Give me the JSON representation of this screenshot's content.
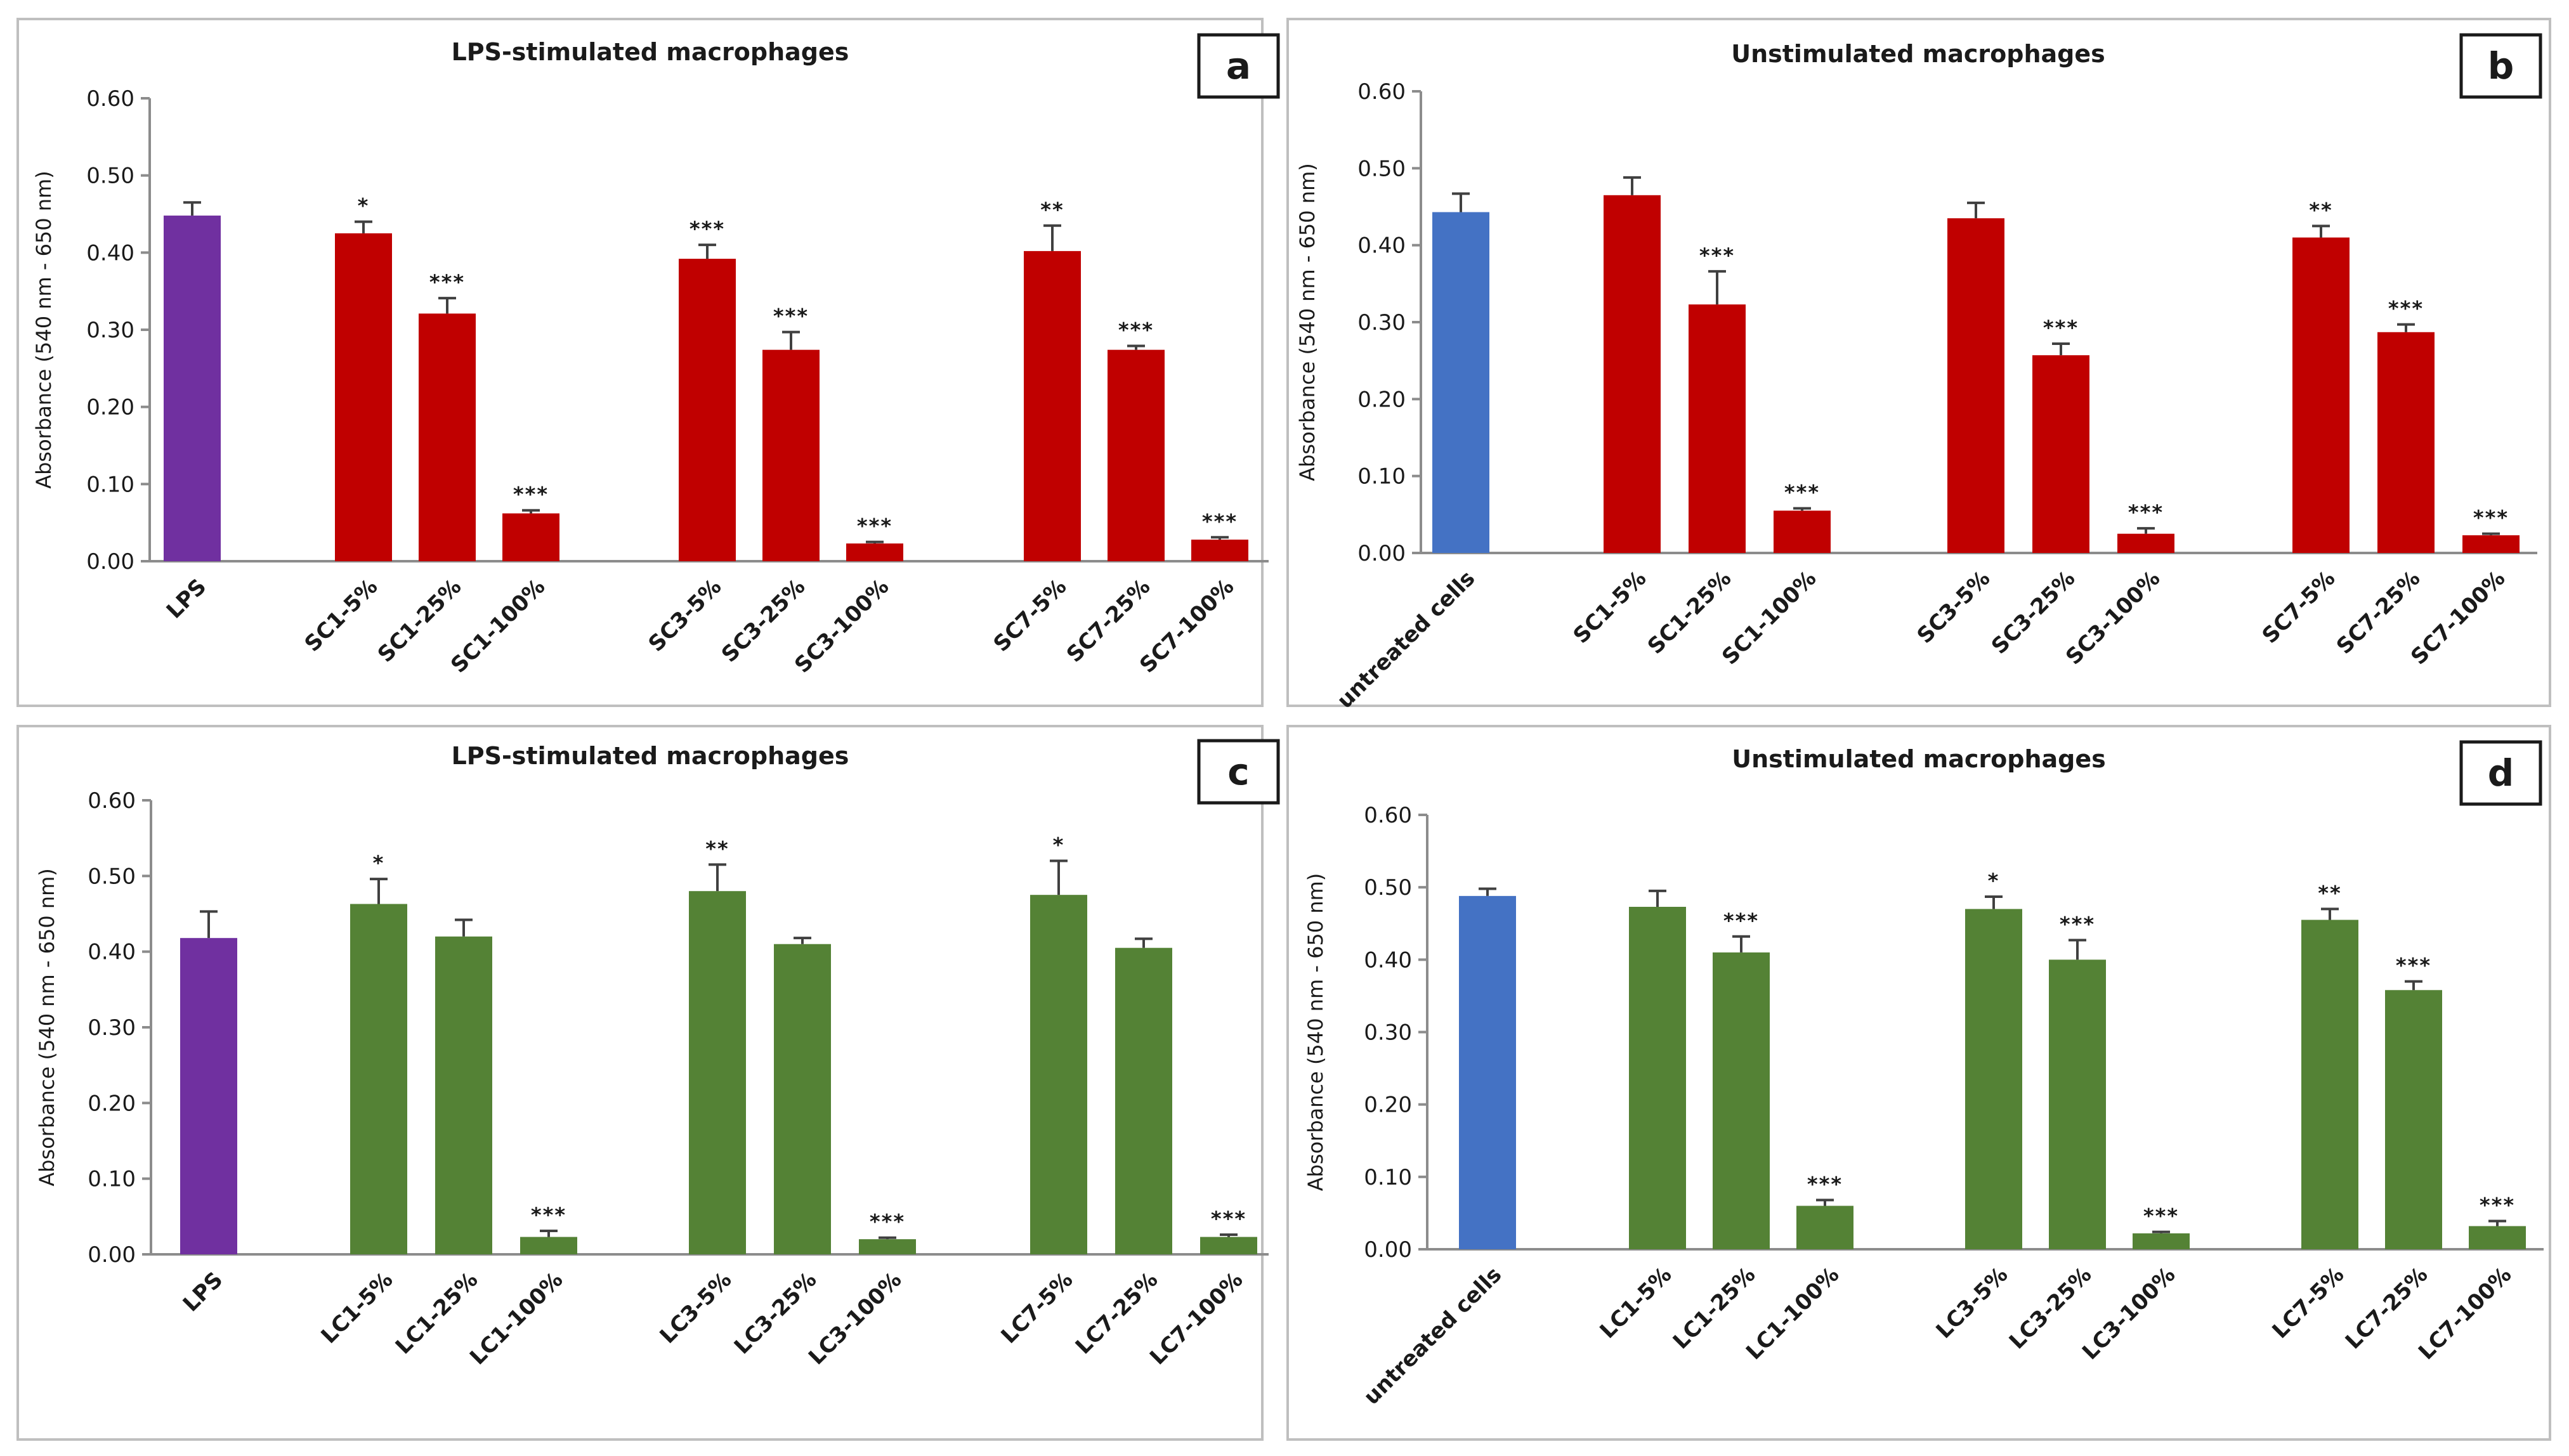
{
  "colors": {
    "purple": "#7030A0",
    "red": "#C00000",
    "green": "#548235",
    "blue": "#4472C4"
  },
  "chart_data": [
    {
      "id": "a",
      "type": "bar",
      "panel_label": "a",
      "title": "LPS-stimulated macrophages",
      "ylabel": "Absorbance (540 nm - 650 nm)",
      "ylim": [
        0,
        0.6
      ],
      "yticks": [
        "0.00",
        "0.10",
        "0.20",
        "0.30",
        "0.40",
        "0.50",
        "0.60"
      ],
      "bars": [
        {
          "label": "LPS",
          "value": 0.448,
          "error": 0.017,
          "sig": "",
          "color": "#7030A0"
        },
        {
          "label": "SC1-5%",
          "value": 0.425,
          "error": 0.015,
          "sig": "*",
          "color": "#C00000"
        },
        {
          "label": "SC1-25%",
          "value": 0.321,
          "error": 0.02,
          "sig": "***",
          "color": "#C00000"
        },
        {
          "label": "SC1-100%",
          "value": 0.062,
          "error": 0.004,
          "sig": "***",
          "color": "#C00000"
        },
        {
          "label": "SC3-5%",
          "value": 0.392,
          "error": 0.018,
          "sig": "***",
          "color": "#C00000"
        },
        {
          "label": "SC3-25%",
          "value": 0.274,
          "error": 0.023,
          "sig": "***",
          "color": "#C00000"
        },
        {
          "label": "SC3-100%",
          "value": 0.023,
          "error": 0.002,
          "sig": "***",
          "color": "#C00000"
        },
        {
          "label": "SC7-5%",
          "value": 0.402,
          "error": 0.033,
          "sig": "**",
          "color": "#C00000"
        },
        {
          "label": "SC7-25%",
          "value": 0.274,
          "error": 0.005,
          "sig": "***",
          "color": "#C00000"
        },
        {
          "label": "SC7-100%",
          "value": 0.028,
          "error": 0.003,
          "sig": "***",
          "color": "#C00000"
        }
      ]
    },
    {
      "id": "b",
      "type": "bar",
      "panel_label": "b",
      "title": "Unstimulated macrophages",
      "ylabel": "Absorbance (540 nm - 650 nm)",
      "ylim": [
        0,
        0.6
      ],
      "yticks": [
        "0.00",
        "0.10",
        "0.20",
        "0.30",
        "0.40",
        "0.50",
        "0.60"
      ],
      "bars": [
        {
          "label": "untreated cells",
          "value": 0.443,
          "error": 0.024,
          "sig": "",
          "color": "#4472C4"
        },
        {
          "label": "SC1-5%",
          "value": 0.465,
          "error": 0.023,
          "sig": "",
          "color": "#C00000"
        },
        {
          "label": "SC1-25%",
          "value": 0.323,
          "error": 0.043,
          "sig": "***",
          "color": "#C00000"
        },
        {
          "label": "SC1-100%",
          "value": 0.055,
          "error": 0.003,
          "sig": "***",
          "color": "#C00000"
        },
        {
          "label": "SC3-5%",
          "value": 0.435,
          "error": 0.02,
          "sig": "",
          "color": "#C00000"
        },
        {
          "label": "SC3-25%",
          "value": 0.257,
          "error": 0.015,
          "sig": "***",
          "color": "#C00000"
        },
        {
          "label": "SC3-100%",
          "value": 0.025,
          "error": 0.007,
          "sig": "***",
          "color": "#C00000"
        },
        {
          "label": "SC7-5%",
          "value": 0.41,
          "error": 0.015,
          "sig": "**",
          "color": "#C00000"
        },
        {
          "label": "SC7-25%",
          "value": 0.287,
          "error": 0.01,
          "sig": "***",
          "color": "#C00000"
        },
        {
          "label": "SC7-100%",
          "value": 0.023,
          "error": 0.002,
          "sig": "***",
          "color": "#C00000"
        }
      ]
    },
    {
      "id": "c",
      "type": "bar",
      "panel_label": "c",
      "title": "LPS-stimulated macrophages",
      "ylabel": "Absorbance (540 nm - 650 nm)",
      "ylim": [
        0,
        0.6
      ],
      "yticks": [
        "0.00",
        "0.10",
        "0.20",
        "0.30",
        "0.40",
        "0.50",
        "0.60"
      ],
      "bars": [
        {
          "label": "LPS",
          "value": 0.418,
          "error": 0.035,
          "sig": "",
          "color": "#7030A0"
        },
        {
          "label": "LC1-5%",
          "value": 0.463,
          "error": 0.033,
          "sig": "*",
          "color": "#548235"
        },
        {
          "label": "LC1-25%",
          "value": 0.42,
          "error": 0.022,
          "sig": "",
          "color": "#548235"
        },
        {
          "label": "LC1-100%",
          "value": 0.023,
          "error": 0.008,
          "sig": "***",
          "color": "#548235"
        },
        {
          "label": "LC3-5%",
          "value": 0.48,
          "error": 0.035,
          "sig": "**",
          "color": "#548235"
        },
        {
          "label": "LC3-25%",
          "value": 0.41,
          "error": 0.008,
          "sig": "",
          "color": "#548235"
        },
        {
          "label": "LC3-100%",
          "value": 0.02,
          "error": 0.002,
          "sig": "***",
          "color": "#548235"
        },
        {
          "label": "LC7-5%",
          "value": 0.475,
          "error": 0.045,
          "sig": "*",
          "color": "#548235"
        },
        {
          "label": "LC7-25%",
          "value": 0.405,
          "error": 0.012,
          "sig": "",
          "color": "#548235"
        },
        {
          "label": "LC7-100%",
          "value": 0.023,
          "error": 0.003,
          "sig": "***",
          "color": "#548235"
        }
      ]
    },
    {
      "id": "d",
      "type": "bar",
      "panel_label": "d",
      "title": "Unstimulated macrophages",
      "ylabel": "Absorbance (540 nm - 650 nm)",
      "ylim": [
        0,
        0.6
      ],
      "yticks": [
        "0.00",
        "0.10",
        "0.20",
        "0.30",
        "0.40",
        "0.50",
        "0.60"
      ],
      "bars": [
        {
          "label": "untreated cells",
          "value": 0.488,
          "error": 0.01,
          "sig": "",
          "color": "#4472C4"
        },
        {
          "label": "LC1-5%",
          "value": 0.473,
          "error": 0.022,
          "sig": "",
          "color": "#548235"
        },
        {
          "label": "LC1-25%",
          "value": 0.41,
          "error": 0.022,
          "sig": "***",
          "color": "#548235"
        },
        {
          "label": "LC1-100%",
          "value": 0.06,
          "error": 0.008,
          "sig": "***",
          "color": "#548235"
        },
        {
          "label": "LC3-5%",
          "value": 0.47,
          "error": 0.017,
          "sig": "*",
          "color": "#548235"
        },
        {
          "label": "LC3-25%",
          "value": 0.4,
          "error": 0.027,
          "sig": "***",
          "color": "#548235"
        },
        {
          "label": "LC3-100%",
          "value": 0.022,
          "error": 0.002,
          "sig": "***",
          "color": "#548235"
        },
        {
          "label": "LC7-5%",
          "value": 0.455,
          "error": 0.015,
          "sig": "**",
          "color": "#548235"
        },
        {
          "label": "LC7-25%",
          "value": 0.358,
          "error": 0.012,
          "sig": "***",
          "color": "#548235"
        },
        {
          "label": "LC7-100%",
          "value": 0.032,
          "error": 0.007,
          "sig": "***",
          "color": "#548235"
        }
      ]
    }
  ]
}
